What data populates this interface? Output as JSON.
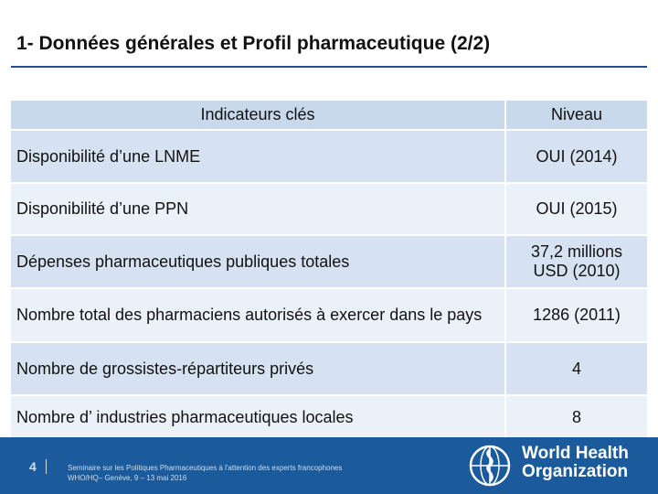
{
  "title": "1- Données générales et Profil pharmaceutique (2/2)",
  "table": {
    "header": [
      "Indicateurs clés",
      "Niveau"
    ],
    "rows": [
      [
        "Disponibilité d’une LNME",
        "OUI (2014)"
      ],
      [
        "Disponibilité d’une PPN",
        "OUI (2015)"
      ],
      [
        "Dépenses pharmaceutiques publiques totales",
        "37,2 millions USD (2010)"
      ],
      [
        "Nombre total des pharmaciens autorisés à exercer dans le pays",
        "1286 (2011)"
      ],
      [
        "Nombre de grossistes-répartiteurs privés",
        "4"
      ],
      [
        "Nombre d’ industries pharmaceutiques locales",
        "8"
      ]
    ]
  },
  "footer": {
    "page": "4",
    "note": [
      "Seminaire sur les Politiques Pharmaceutiques à l'attention des experts francophones",
      "WHO/HQ– Genève, 9 – 13 mai 2016"
    ],
    "org": [
      "World Health",
      "Organization"
    ]
  }
}
